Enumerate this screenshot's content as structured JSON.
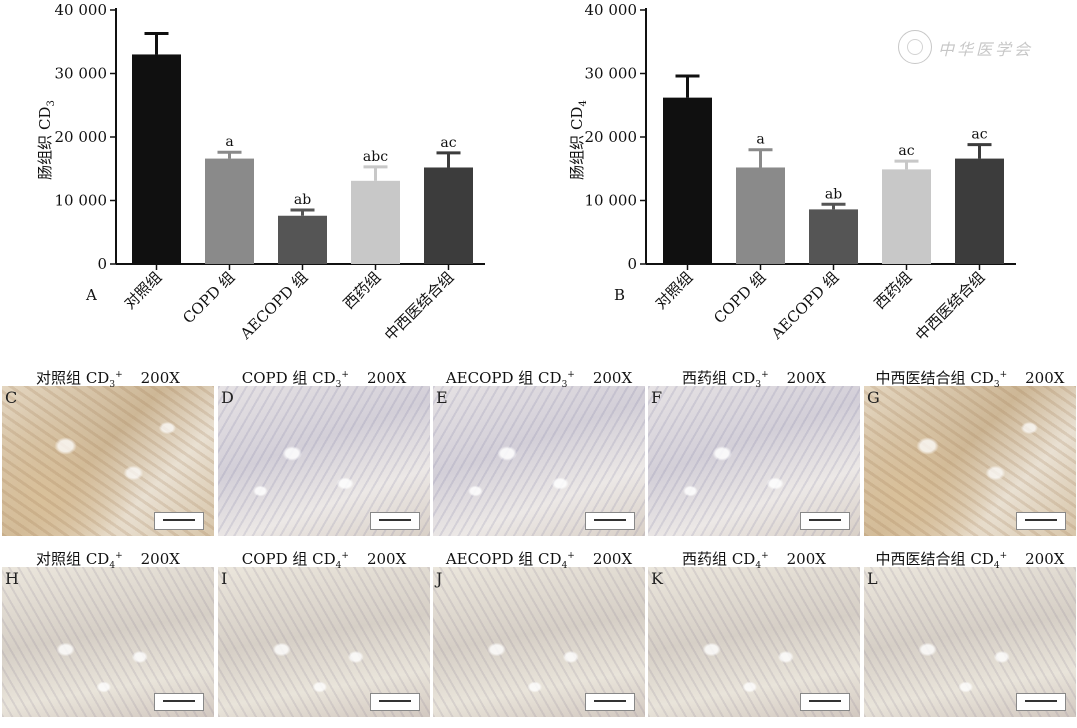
{
  "chart_data": [
    {
      "type": "bar",
      "panel_label": "A",
      "ylabel": "肠组织 CD",
      "ylabel_sub": "3",
      "categories": [
        "对照组",
        "COPD 组",
        "AECOPD 组",
        "西药组",
        "中西医结合组"
      ],
      "values": [
        33000,
        16600,
        7600,
        13100,
        15200
      ],
      "errors": [
        3300,
        1000,
        900,
        2200,
        2300
      ],
      "annotations": [
        "",
        "a",
        "ab",
        "abc",
        "ac"
      ],
      "ylim": [
        0,
        40000
      ],
      "yticks": [
        0,
        10000,
        20000,
        30000,
        40000
      ],
      "ytick_labels": [
        "0",
        "10 000",
        "20 000",
        "30 000",
        "40 000"
      ],
      "bar_colors": [
        "#101010",
        "#8a8a8a",
        "#555555",
        "#c8c8c8",
        "#3c3c3c"
      ]
    },
    {
      "type": "bar",
      "panel_label": "B",
      "ylabel": "肠组织 CD",
      "ylabel_sub": "4",
      "categories": [
        "对照组",
        "COPD 组",
        "AECOPD 组",
        "西药组",
        "中西医结合组"
      ],
      "values": [
        26200,
        15200,
        8600,
        14900,
        16600
      ],
      "errors": [
        3400,
        2800,
        800,
        1300,
        2200
      ],
      "annotations": [
        "",
        "a",
        "ab",
        "ac",
        "ac"
      ],
      "ylim": [
        0,
        40000
      ],
      "yticks": [
        0,
        10000,
        20000,
        30000,
        40000
      ],
      "ytick_labels": [
        "0",
        "10 000",
        "20 000",
        "30 000",
        "40 000"
      ],
      "bar_colors": [
        "#101010",
        "#8a8a8a",
        "#555555",
        "#c8c8c8",
        "#3c3c3c"
      ]
    }
  ],
  "watermark": "中华医学会",
  "micrographs": [
    {
      "letter": "C",
      "group": "对照组",
      "marker": "CD",
      "sub": "3",
      "sup": "+",
      "mag": "200X"
    },
    {
      "letter": "D",
      "group": "COPD 组",
      "marker": "CD",
      "sub": "3",
      "sup": "+",
      "mag": "200X"
    },
    {
      "letter": "E",
      "group": "AECOPD 组",
      "marker": "CD",
      "sub": "3",
      "sup": "+",
      "mag": "200X"
    },
    {
      "letter": "F",
      "group": "西药组",
      "marker": "CD",
      "sub": "3",
      "sup": "+",
      "mag": "200X"
    },
    {
      "letter": "G",
      "group": "中西医结合组",
      "marker": "CD",
      "sub": "3",
      "sup": "+",
      "mag": "200X"
    },
    {
      "letter": "H",
      "group": "对照组",
      "marker": "CD",
      "sub": "4",
      "sup": "+",
      "mag": "200X"
    },
    {
      "letter": "I",
      "group": "COPD 组",
      "marker": "CD",
      "sub": "4",
      "sup": "+",
      "mag": "200X"
    },
    {
      "letter": "J",
      "group": "AECOPD 组",
      "marker": "CD",
      "sub": "4",
      "sup": "+",
      "mag": "200X"
    },
    {
      "letter": "K",
      "group": "西药组",
      "marker": "CD",
      "sub": "4",
      "sup": "+",
      "mag": "200X"
    },
    {
      "letter": "L",
      "group": "中西医结合组",
      "marker": "CD",
      "sub": "4",
      "sup": "+",
      "mag": "200X"
    }
  ]
}
